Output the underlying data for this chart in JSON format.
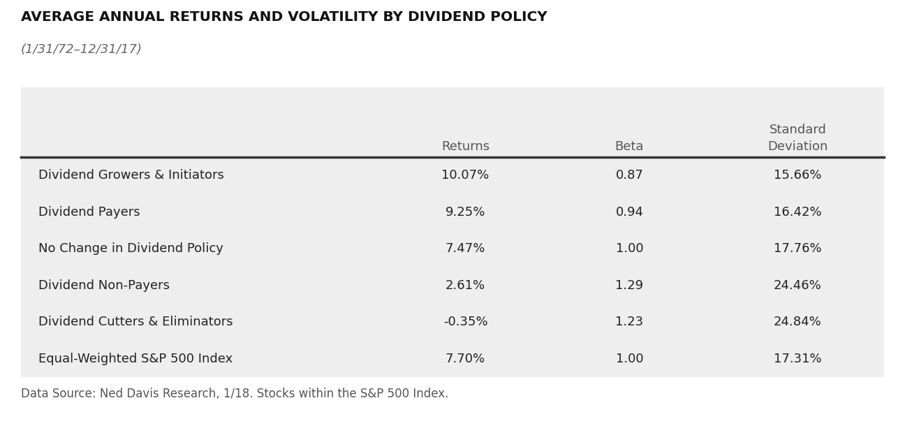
{
  "title": "AVERAGE ANNUAL RETURNS AND VOLATILITY BY DIVIDEND POLICY",
  "subtitle": "(1/31/72–12/31/17)",
  "col_headers": [
    "",
    "Returns",
    "Beta",
    "Standard\nDeviation"
  ],
  "rows": [
    [
      "Dividend Growers & Initiators",
      "10.07%",
      "0.87",
      "15.66%"
    ],
    [
      "Dividend Payers",
      "9.25%",
      "0.94",
      "16.42%"
    ],
    [
      "No Change in Dividend Policy",
      "7.47%",
      "1.00",
      "17.76%"
    ],
    [
      "Dividend Non-Payers",
      "2.61%",
      "1.29",
      "24.46%"
    ],
    [
      "Dividend Cutters & Eliminators",
      "-0.35%",
      "1.23",
      "24.84%"
    ],
    [
      "Equal-Weighted S&P 500 Index",
      "7.70%",
      "1.00",
      "17.31%"
    ]
  ],
  "footnote": "Data Source: Ned Davis Research, 1/18. Stocks within the S&P 500 Index.",
  "bg_color": "#ffffff",
  "table_bg_color": "#eeeeee",
  "title_color": "#111111",
  "subtitle_color": "#666666",
  "header_text_color": "#555555",
  "row_text_color": "#222222",
  "footnote_color": "#555555",
  "divider_color": "#333333",
  "title_fontsize": 14.5,
  "subtitle_fontsize": 13,
  "header_fontsize": 13,
  "row_fontsize": 13,
  "footnote_fontsize": 12
}
